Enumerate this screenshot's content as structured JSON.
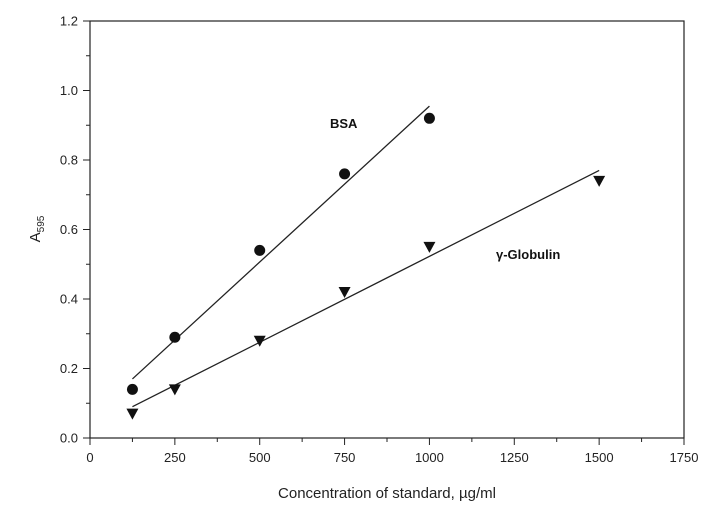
{
  "chart_data": {
    "type": "scatter",
    "xlabel": "Concentration of standard, µg/ml",
    "ylabel": {
      "main": "A",
      "subscript": "595"
    },
    "xlim": [
      0,
      1750
    ],
    "ylim": [
      0.0,
      1.2
    ],
    "xticks": [
      "0",
      "250",
      "500",
      "750",
      "1000",
      "1250",
      "1500",
      "1750"
    ],
    "yticks": [
      "0.0",
      "0.2",
      "0.4",
      "0.6",
      "0.8",
      "1.0",
      "1.2"
    ],
    "xtick_values": [
      0,
      250,
      500,
      750,
      1000,
      1250,
      1500,
      1750
    ],
    "ytick_values": [
      0.0,
      0.2,
      0.4,
      0.6,
      0.8,
      1.0,
      1.2
    ],
    "grid": false,
    "legend": "none",
    "series": [
      {
        "name": "BSA",
        "marker": "circle",
        "points": [
          [
            125,
            0.14
          ],
          [
            250,
            0.29
          ],
          [
            500,
            0.54
          ],
          [
            750,
            0.76
          ],
          [
            1000,
            0.92
          ]
        ],
        "fit": [
          [
            125,
            0.17
          ],
          [
            1000,
            0.955
          ]
        ]
      },
      {
        "name": "γ-Globulin",
        "marker": "triangle-down",
        "points": [
          [
            125,
            0.07
          ],
          [
            250,
            0.14
          ],
          [
            500,
            0.28
          ],
          [
            750,
            0.42
          ],
          [
            1000,
            0.55
          ],
          [
            1500,
            0.74
          ]
        ],
        "fit": [
          [
            125,
            0.09
          ],
          [
            1500,
            0.77
          ]
        ]
      }
    ]
  }
}
